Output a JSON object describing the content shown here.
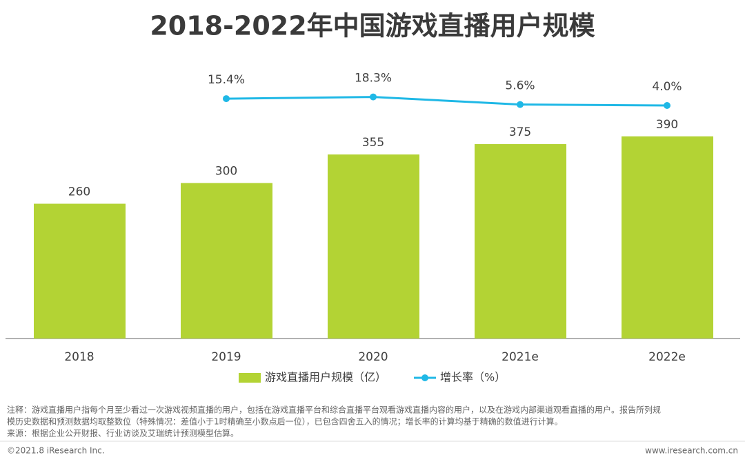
{
  "chart_data": {
    "type": "bar",
    "title": "2018-2022年中国游戏直播用户规模",
    "categories": [
      "2018",
      "2019",
      "2020",
      "2021e",
      "2022e"
    ],
    "series": [
      {
        "name": "游戏直播用户规模（亿）",
        "type": "bar",
        "color": "#b3d334",
        "values": [
          260,
          300,
          355,
          375,
          390
        ]
      },
      {
        "name": "增长率（%）",
        "type": "line",
        "axis": "y2",
        "color": "#1fb8e6",
        "values": [
          null,
          15.4,
          18.3,
          5.6,
          4.0
        ],
        "value_labels": [
          null,
          "15.4%",
          "18.3%",
          "5.6%",
          "4.0%"
        ]
      }
    ],
    "ylim": [
      0,
      520
    ],
    "y2lim": [
      -385,
      65
    ],
    "legend": "bottom",
    "note": [
      "注释：游戏直播用户指每个月至少看过一次游戏视频直播的用户，包括在游戏直播平台和综合直播平台观看游戏直播内容的用户，以及在游戏内部渠道观看直播的用户。报告所列规",
      "模历史数据和预测数据均取整数位（特殊情况：差值小于1时精确至小数点后一位），已包含四舍五入的情况；增长率的计算均基于精确的数值进行计算。"
    ],
    "source": "来源：根据企业公开财报、行业访谈及艾瑞统计预测模型估算。",
    "copyright": "©2021.8 iResearch Inc.",
    "website": "www.iresearch.com.cn"
  }
}
